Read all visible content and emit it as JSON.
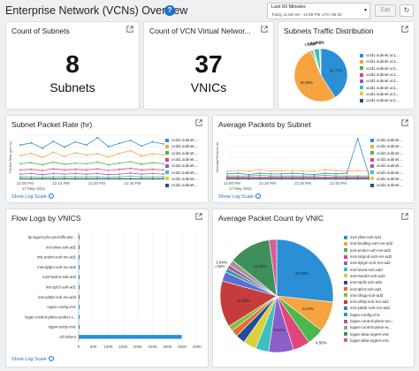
{
  "header": {
    "title": "Enterprise Network (VCNs) Overview",
    "info_icon": "info-icon",
    "time_label": "Last 60 Minutes",
    "time_range": "Today 11:58 AM - 12:58 PM UTC+05:30",
    "edit_label": "Edit",
    "refresh_icon": "refresh-icon"
  },
  "colors": {
    "accent": "#1c6fd1",
    "palette": [
      "#2b8fd6",
      "#f7a440",
      "#4bb84b",
      "#e0457b",
      "#8b5fc7",
      "#3bbfbf",
      "#d9d13a",
      "#1f4e9a",
      "#e86d2c",
      "#7fbf3f",
      "#c63c3c",
      "#5a6fd1",
      "#28a0a0",
      "#b0569e",
      "#9a9a9a",
      "#3f8f5a",
      "#d85c9a",
      "#6e8ccf",
      "#c79a2a"
    ]
  },
  "count_subnets": {
    "title": "Count of Subnets",
    "value": "8",
    "unit": "Subnets"
  },
  "count_vnics": {
    "title": "Count of VCN Virtual Networ...",
    "value": "37",
    "unit": "VNICs"
  },
  "traffic_dist": {
    "title": "Subnets Traffic Distribution",
    "legend": [
      "ocid1.subnet.oc1...",
      "ocid1.subnet.oc1...",
      "ocid1.subnet.oc1...",
      "ocid1.subnet.oc1...",
      "ocid1.subnet.oc1...",
      "ocid1.subnet.oc1...",
      "ocid1.subnet.oc1...",
      "ocid1.subnet.oc1..."
    ]
  },
  "packet_rate": {
    "title": "Subnet Packet Rate (hr)",
    "yaxis": "Packet Rate (per hr)",
    "xticks": [
      "12:00 PM",
      "12:15 PM",
      "12:30 PM",
      "12:45 PM"
    ],
    "date": "17 May 2021",
    "legend": [
      "ocid1.subnet....",
      "ocid1.subnet....",
      "ocid1.subnet....",
      "ocid1.subnet....",
      "ocid1.subnet....",
      "ocid1.subnet....",
      "ocid1.subnet....",
      "ocid1.subnet...."
    ],
    "showlog": "Show Log Scale"
  },
  "avg_packets": {
    "title": "Average Packets by Subnet",
    "yaxis": "AveragePackets (in",
    "xticks": [
      "12:00 PM",
      "12:15 PM",
      "12:30 PM",
      "12:45 PM"
    ],
    "date": "17 May 2021",
    "legend": [
      "ocid1.subnet....",
      "ocid1.subnet....",
      "ocid1.subnet....",
      "ocid1.subnet....",
      "ocid1.subnet....",
      "ocid1.subnet....",
      "ocid1.subnet....",
      "ocid1.subnet...."
    ],
    "showlog": "Show Log Scale"
  },
  "flow_logs": {
    "title": "Flow Logs by VNICS",
    "showlog": "Show Log Scale"
  },
  "avg_count_vnic": {
    "title": "Average Packet Count by VNIC",
    "legend": [
      "inst-yfwe-soh-ad1",
      "inst-fuvdtkg-soh-ms-ad2",
      "inst-arukm-soh-ms-ad1",
      "inst-ndgmd-soh-ms-ad2",
      "inst-dylgm-soh-ms-ad2",
      "inst-fwxat-soh-ad3",
      "inst-hwuh2-soh-ad3",
      "inst-ntpl3-soh-ad2",
      "inst-tplz3-soh-ad1",
      "inst-xfnqq-soh-ad3",
      "inst-utfdq-soh-ms-ad2",
      "inst-yd6dr-soh-ms-ad3",
      "logan-config-vnic",
      "logan-control-plane-wo...",
      "logan-control-plane-w...",
      "logan-data-ingest-vnic",
      "logan-data-ingest-vnic"
    ]
  },
  "chart_data": [
    {
      "type": "pie",
      "title": "Subnets Traffic Distribution",
      "labels": [
        "ocid1.subnet.oc1...",
        "ocid1.subnet.oc1...",
        "ocid1.subnet.oc1...",
        "ocid1.subnet.oc1...",
        "ocid1.subnet.oc1...",
        "ocid1.subnet.oc1...",
        "ocid1.subnet.oc1...",
        "ocid1.subnet.oc1..."
      ],
      "values": [
        41.77,
        53.9,
        1.09,
        0.5,
        0.5,
        3.26,
        0.5,
        0.5
      ],
      "data_labels": [
        "41.77%",
        "53.90%",
        "1.09%",
        "< 1%",
        "< 1%",
        "3.26%",
        "< 1%",
        "< 1%"
      ]
    },
    {
      "type": "line",
      "title": "Subnet Packet Rate (hr)",
      "ylabel": "Packet Rate (per hr)",
      "x": [
        "11:58",
        "12:00",
        "12:05",
        "12:10",
        "12:15",
        "12:20",
        "12:25",
        "12:30",
        "12:35",
        "12:40",
        "12:45",
        "12:50",
        "12:55",
        "12:58"
      ],
      "series": [
        {
          "name": "ocid1.subnet....",
          "values": [
            0.66,
            0.7,
            0.6,
            0.73,
            0.62,
            0.72,
            0.66,
            0.8,
            0.63,
            0.69,
            0.75,
            0.64,
            0.72,
            0.68
          ]
        },
        {
          "name": "ocid1.subnet....",
          "values": [
            0.46,
            0.5,
            0.42,
            0.52,
            0.44,
            0.51,
            0.47,
            0.49,
            0.43,
            0.5,
            0.55,
            0.45,
            0.49,
            0.47
          ]
        },
        {
          "name": "ocid1.subnet....",
          "values": [
            0.3,
            0.32,
            0.28,
            0.33,
            0.29,
            0.31,
            0.3,
            0.33,
            0.28,
            0.31,
            0.34,
            0.29,
            0.32,
            0.3
          ]
        },
        {
          "name": "ocid1.subnet....",
          "values": [
            0.18,
            0.19,
            0.17,
            0.2,
            0.18,
            0.19,
            0.18,
            0.2,
            0.17,
            0.19,
            0.21,
            0.18,
            0.19,
            0.18
          ]
        },
        {
          "name": "ocid1.subnet....",
          "values": [
            0.1,
            0.11,
            0.09,
            0.11,
            0.1,
            0.11,
            0.1,
            0.11,
            0.09,
            0.1,
            0.12,
            0.1,
            0.11,
            0.1
          ]
        },
        {
          "name": "ocid1.subnet....",
          "values": [
            0.05,
            0.05,
            0.04,
            0.05,
            0.05,
            0.05,
            0.05,
            0.05,
            0.04,
            0.05,
            0.06,
            0.05,
            0.05,
            0.05
          ]
        },
        {
          "name": "ocid1.subnet....",
          "values": [
            0.02,
            0.02,
            0.02,
            0.02,
            0.02,
            0.02,
            0.02,
            0.02,
            0.02,
            0.02,
            0.02,
            0.02,
            0.02,
            0.02
          ]
        },
        {
          "name": "ocid1.subnet....",
          "values": [
            0.01,
            0.01,
            0.01,
            0.01,
            0.01,
            0.01,
            0.01,
            0.01,
            0.01,
            0.01,
            0.01,
            0.01,
            0.01,
            0.01
          ]
        }
      ]
    },
    {
      "type": "line",
      "title": "Average Packets by Subnet",
      "ylabel": "AveragePackets (in",
      "x": [
        "11:58",
        "12:00",
        "12:05",
        "12:10",
        "12:15",
        "12:20",
        "12:25",
        "12:30",
        "12:35",
        "12:40",
        "12:45",
        "12:50",
        "12:55",
        "12:58"
      ],
      "series": [
        {
          "name": "ocid1.subnet....",
          "values": [
            0.08,
            0.09,
            0.07,
            0.09,
            0.08,
            0.08,
            0.09,
            0.08,
            0.07,
            0.09,
            0.08,
            0.09,
            0.6,
            0.08
          ]
        },
        {
          "name": "ocid1.subnet....",
          "values": [
            0.12,
            0.13,
            0.12,
            0.14,
            0.12,
            0.13,
            0.13,
            0.12,
            0.12,
            0.14,
            0.13,
            0.12,
            0.13,
            0.12
          ]
        },
        {
          "name": "ocid1.subnet....",
          "values": [
            0.05,
            0.05,
            0.05,
            0.06,
            0.05,
            0.05,
            0.05,
            0.05,
            0.05,
            0.06,
            0.05,
            0.05,
            0.05,
            0.05
          ]
        },
        {
          "name": "ocid1.subnet....",
          "values": [
            0.03,
            0.03,
            0.03,
            0.03,
            0.03,
            0.03,
            0.03,
            0.03,
            0.03,
            0.03,
            0.03,
            0.03,
            0.03,
            0.03
          ]
        },
        {
          "name": "ocid1.subnet....",
          "values": [
            0.02,
            0.02,
            0.02,
            0.02,
            0.02,
            0.02,
            0.02,
            0.02,
            0.02,
            0.02,
            0.02,
            0.02,
            0.02,
            0.02
          ]
        },
        {
          "name": "ocid1.subnet....",
          "values": [
            0.01,
            0.01,
            0.01,
            0.01,
            0.01,
            0.01,
            0.01,
            0.01,
            0.01,
            0.01,
            0.01,
            0.01,
            0.01,
            0.01
          ]
        },
        {
          "name": "ocid1.subnet....",
          "values": [
            0.01,
            0.01,
            0.01,
            0.01,
            0.01,
            0.01,
            0.01,
            0.01,
            0.01,
            0.01,
            0.01,
            0.01,
            0.01,
            0.01
          ]
        },
        {
          "name": "ocid1.subnet....",
          "values": [
            0.005,
            0.005,
            0.005,
            0.005,
            0.005,
            0.005,
            0.005,
            0.005,
            0.005,
            0.005,
            0.005,
            0.005,
            0.005,
            0.005
          ]
        }
      ]
    },
    {
      "type": "bar",
      "title": "Flow Logs by VNICS",
      "orientation": "horizontal",
      "categories": [
        "dp-agent-phx-pool-dfb-ptvr...",
        "inst-yfwe-soh-ad1",
        "inst-arukm-soh-ms-ad1",
        "inst-dylgm-soh-ms-ad2",
        "inst-hwuh2-soh-ad3",
        "inst-tplz3-soh-ad1",
        "inst-yd6dr-soh-ms-ad3",
        "logan-config-vnic",
        "logan-control-plane-worker-v...",
        "logan-entity-vnic",
        "All Others"
      ],
      "values": [
        2000,
        3000,
        2500,
        2000,
        1500,
        2000,
        3000,
        2000,
        1500,
        1800,
        348000
      ],
      "xticks": [
        "0",
        "50K",
        "100K",
        "150K",
        "200K",
        "250K",
        "300K",
        "350K",
        "400K"
      ],
      "xlim": [
        0,
        400000
      ]
    },
    {
      "type": "pie",
      "title": "Average Packet Count by VNIC",
      "labels": [
        "inst-yfwe-soh-ad1",
        "inst-fuvdtkg-soh-ms-ad2",
        "inst-arukm-soh-ms-ad1",
        "inst-ndgmd-soh-ms-ad2",
        "inst-dylgm-soh-ms-ad2",
        "inst-fwxat-soh-ad3",
        "inst-hwuh2-soh-ad3",
        "inst-ntpl3-soh-ad2",
        "inst-tplz3-soh-ad1",
        "inst-xfnqq-soh-ad3",
        "inst-utfdq-soh-ms-ad2",
        "inst-yd6dr-soh-ms-ad3",
        "logan-config-vnic",
        "logan-control-plane-wo...",
        "logan-control-plane-w...",
        "logan-data-ingest-vnic",
        "logan-data-ingest-vnic"
      ],
      "values": [
        24.92,
        8.13,
        4.56,
        4.5,
        6.64,
        3.5,
        3.5,
        2.5,
        1.8,
        1.5,
        12.38,
        2.5,
        1.04,
        1.04,
        1.5,
        11.22,
        2.0
      ],
      "data_labels": [
        "24.92%",
        "8.13%",
        "4.56%",
        "",
        "6.64%",
        "",
        "",
        "",
        "",
        "",
        "12.38%",
        "",
        "1.04%",
        "1.04%",
        "",
        "11.22%",
        ""
      ]
    }
  ]
}
